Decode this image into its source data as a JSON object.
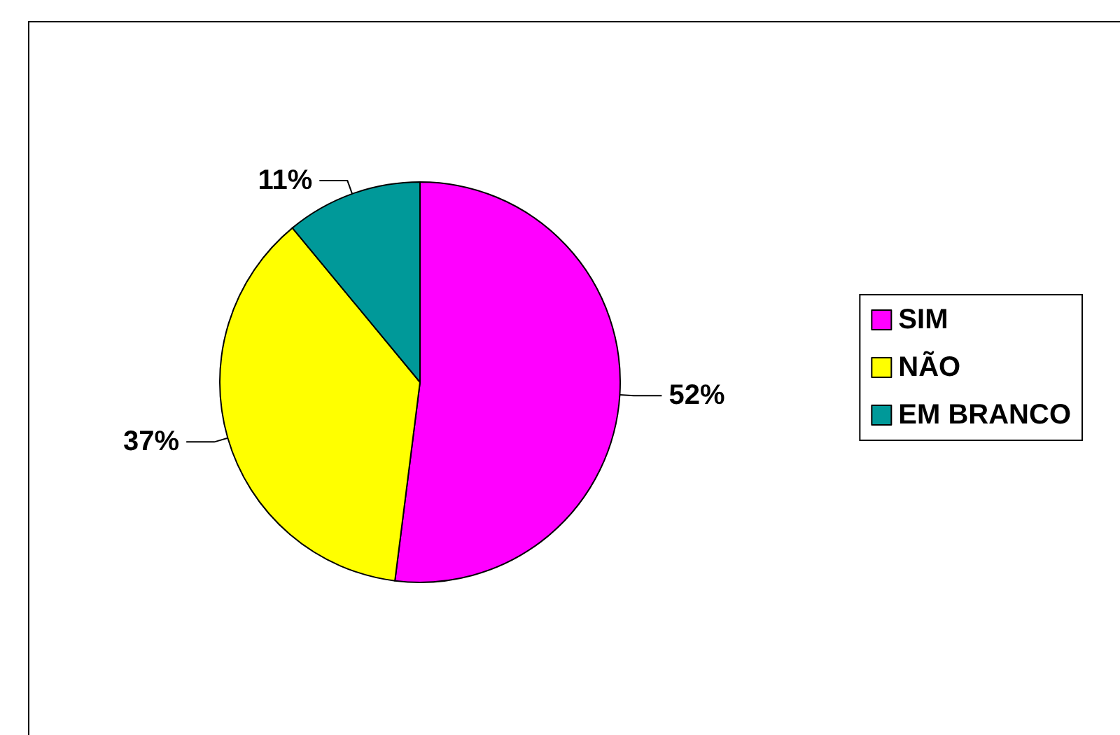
{
  "chart_data": {
    "type": "pie",
    "categories": [
      "SIM",
      "NÃO",
      "EM BRANCO"
    ],
    "values": [
      52,
      37,
      11
    ],
    "colors": [
      "#ff00ff",
      "#ffff00",
      "#009999"
    ],
    "value_labels": [
      "52%",
      "37%",
      "11%"
    ],
    "legend": "right"
  }
}
